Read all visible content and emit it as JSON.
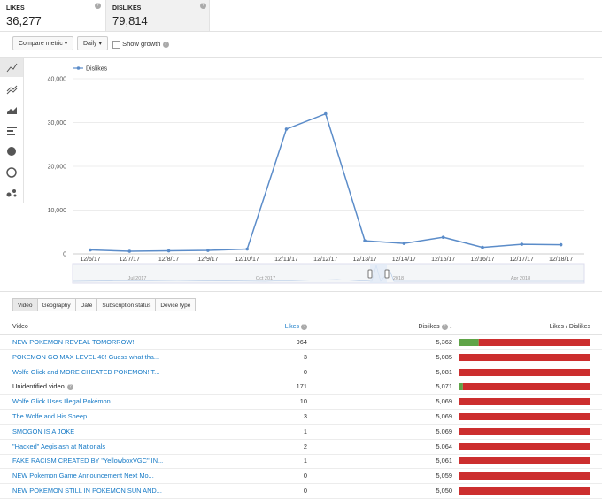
{
  "cards": [
    {
      "label": "LIKES",
      "value": "36,277"
    },
    {
      "label": "DISLIKES",
      "value": "79,814"
    }
  ],
  "toolbar": {
    "compare": "Compare metric",
    "interval": "Daily",
    "growth": "Show growth"
  },
  "chart_data": {
    "type": "line",
    "categories": [
      "12/6/17",
      "12/7/17",
      "12/8/17",
      "12/9/17",
      "12/10/17",
      "12/11/17",
      "12/12/17",
      "12/13/17",
      "12/14/17",
      "12/15/17",
      "12/16/17",
      "12/17/17",
      "12/18/17"
    ],
    "series": [
      {
        "name": "Dislikes",
        "color": "#5b8cc9",
        "values": [
          900,
          600,
          700,
          800,
          1100,
          28500,
          32000,
          3000,
          2400,
          3800,
          1500,
          2200,
          2100
        ]
      }
    ],
    "ylim": [
      0,
      40000
    ],
    "yticks": [
      0,
      {
        "value": 10000,
        "label": "10,000"
      },
      {
        "value": 20000,
        "label": "20,000"
      },
      {
        "value": 30000,
        "label": "30,000"
      },
      {
        "value": 40000,
        "label": "40,000"
      }
    ],
    "grid": true
  },
  "navigator": {
    "labels": [
      "Jul 2017",
      "Oct 2017",
      "2018",
      "Apr 2018"
    ]
  },
  "tabs": [
    "Video",
    "Geography",
    "Date",
    "Subscription status",
    "Device type"
  ],
  "table": {
    "header": {
      "video": "Video",
      "likes": "Likes",
      "dislikes": "Dislikes",
      "ratio": "Likes / Dislikes"
    },
    "rows": [
      {
        "title": "NEW POKEMON REVEAL TOMORROW!",
        "link": true,
        "likes": 964,
        "dislikes": {
          "value": 5362,
          "label": "5,362"
        }
      },
      {
        "title": "POKEMON GO MAX LEVEL 40! Guess what tha...",
        "link": true,
        "likes": 3,
        "dislikes": {
          "value": 5085,
          "label": "5,085"
        }
      },
      {
        "title": "Wolfe Glick and MORE CHEATED POKEMON! T...",
        "link": true,
        "likes": 0,
        "dislikes": {
          "value": 5081,
          "label": "5,081"
        }
      },
      {
        "title": "Unidentified video",
        "link": false,
        "likes": 171,
        "dislikes": {
          "value": 5071,
          "label": "5,071"
        }
      },
      {
        "title": "Wolfe Glick Uses Illegal Pokémon",
        "link": true,
        "likes": 10,
        "dislikes": {
          "value": 5069,
          "label": "5,069"
        }
      },
      {
        "title": "The Wolfe and His Sheep",
        "link": true,
        "likes": 3,
        "dislikes": {
          "value": 5069,
          "label": "5,069"
        }
      },
      {
        "title": "SMOGON IS A JOKE",
        "link": true,
        "likes": 1,
        "dislikes": {
          "value": 5069,
          "label": "5,069"
        }
      },
      {
        "title": "\"Hacked\" Aegislash at Nationals",
        "link": true,
        "likes": 2,
        "dislikes": {
          "value": 5064,
          "label": "5,064"
        }
      },
      {
        "title": "FAKE RACISM CREATED BY \"YellowboxVGC\" IN...",
        "link": true,
        "likes": 1,
        "dislikes": {
          "value": 5061,
          "label": "5,061"
        }
      },
      {
        "title": "NEW Pokemon Game Announcement Next Mo...",
        "link": true,
        "likes": 0,
        "dislikes": {
          "value": 5059,
          "label": "5,059"
        }
      },
      {
        "title": "NEW POKEMON STILL IN POKEMON SUN AND...",
        "link": true,
        "likes": 0,
        "dislikes": {
          "value": 5050,
          "label": "5,050"
        }
      }
    ]
  }
}
